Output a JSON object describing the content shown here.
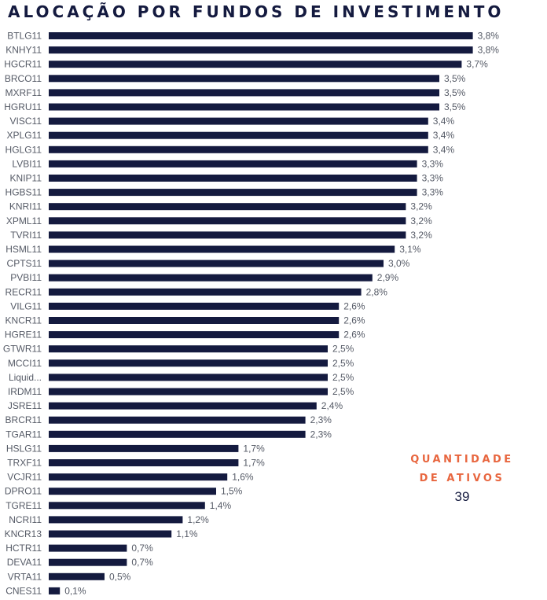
{
  "title": "ALOCAÇÃO POR FUNDOS DE INVESTIMENTO",
  "summary": {
    "label_line1": "QUANTIDADE",
    "label_line2": "DE ATIVOS",
    "value": "39"
  },
  "colors": {
    "bar": "#141a3f",
    "accent": "#e8663f",
    "text": "#555a66"
  },
  "chart_data": {
    "type": "bar",
    "orientation": "horizontal",
    "title": "ALOCAÇÃO POR FUNDOS DE INVESTIMENTO",
    "xlim": [
      0,
      3.9
    ],
    "grid": false,
    "categories": [
      "BTLG11",
      "KNHY11",
      "HGCR11",
      "BRCO11",
      "MXRF11",
      "HGRU11",
      "VISC11",
      "XPLG11",
      "HGLG11",
      "LVBI11",
      "KNIP11",
      "HGBS11",
      "KNRI11",
      "XPML11",
      "TVRI11",
      "HSML11",
      "CPTS11",
      "PVBI11",
      "RECR11",
      "VILG11",
      "KNCR11",
      "HGRE11",
      "GTWR11",
      "MCCI11",
      "Liquid...",
      "IRDM11",
      "JSRE11",
      "BRCR11",
      "TGAR11",
      "HSLG11",
      "TRXF11",
      "VCJR11",
      "DPRO11",
      "TGRE11",
      "NCRI11",
      "KNCR13",
      "HCTR11",
      "DEVA11",
      "VRTA11",
      "CNES11"
    ],
    "values": [
      3.8,
      3.8,
      3.7,
      3.5,
      3.5,
      3.5,
      3.4,
      3.4,
      3.4,
      3.3,
      3.3,
      3.3,
      3.2,
      3.2,
      3.2,
      3.1,
      3.0,
      2.9,
      2.8,
      2.6,
      2.6,
      2.6,
      2.5,
      2.5,
      2.5,
      2.5,
      2.4,
      2.3,
      2.3,
      1.7,
      1.7,
      1.6,
      1.5,
      1.4,
      1.2,
      1.1,
      0.7,
      0.7,
      0.5,
      0.1
    ],
    "value_labels": [
      "3,8%",
      "3,8%",
      "3,7%",
      "3,5%",
      "3,5%",
      "3,5%",
      "3,4%",
      "3,4%",
      "3,4%",
      "3,3%",
      "3,3%",
      "3,3%",
      "3,2%",
      "3,2%",
      "3,2%",
      "3,1%",
      "3,0%",
      "2,9%",
      "2,8%",
      "2,6%",
      "2,6%",
      "2,6%",
      "2,5%",
      "2,5%",
      "2,5%",
      "2,5%",
      "2,4%",
      "2,3%",
      "2,3%",
      "1,7%",
      "1,7%",
      "1,6%",
      "1,5%",
      "1,4%",
      "1,2%",
      "1,1%",
      "0,7%",
      "0,7%",
      "0,5%",
      "0,1%"
    ]
  }
}
